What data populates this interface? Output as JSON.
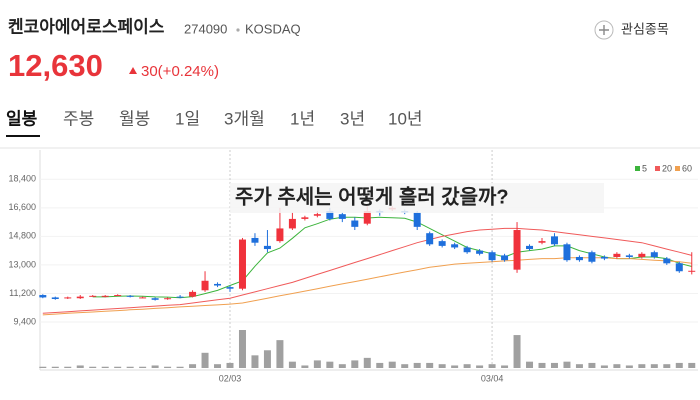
{
  "header": {
    "title": "켄코아에어로스페이스",
    "code": "274090",
    "market": "KOSDAQ",
    "watch_button": "관심종목",
    "price": "12,630",
    "change": "30(+0.24%)"
  },
  "tabs": [
    "일봉",
    "주봉",
    "월봉",
    "1일",
    "3개월",
    "1년",
    "3년",
    "10년"
  ],
  "chart_data": {
    "type": "candlestick",
    "annotation": "주가 추세는 어떻게 흘러 갔을까?",
    "categories": [
      null,
      null,
      null,
      null,
      null,
      null,
      null,
      null,
      null,
      null,
      null,
      null,
      null,
      null,
      null,
      "02/03",
      null,
      null,
      null,
      null,
      null,
      null,
      null,
      null,
      null,
      null,
      null,
      null,
      null,
      null,
      null,
      null,
      null,
      null,
      null,
      null,
      "03/04",
      null,
      null,
      null,
      null,
      null,
      null,
      null,
      null,
      null,
      null,
      null,
      null,
      null,
      null,
      null,
      null
    ],
    "open": [
      11100,
      10950,
      10900,
      10900,
      11050,
      11000,
      11100,
      11050,
      10950,
      10900,
      10850,
      11000,
      11000,
      11400,
      11800,
      11600,
      11500,
      14700,
      14200,
      14500,
      15300,
      15900,
      16100,
      16400,
      16200,
      15800,
      15600,
      16400,
      16500,
      16400,
      16300,
      15000,
      14500,
      14300,
      14100,
      13900,
      13800,
      13600,
      12700,
      14200,
      14400,
      14800,
      14300,
      13500,
      13800,
      13500,
      13500,
      13600,
      13500,
      13800,
      13400,
      13100,
      12600
    ],
    "high": [
      11150,
      11000,
      11000,
      11100,
      11100,
      11100,
      11150,
      11100,
      11000,
      10950,
      10950,
      11100,
      11400,
      12600,
      11900,
      11700,
      14700,
      15000,
      15200,
      16600,
      16300,
      16100,
      16400,
      16600,
      16300,
      16000,
      16700,
      16500,
      16700,
      16500,
      16400,
      15100,
      14600,
      14400,
      14200,
      14000,
      13900,
      13700,
      15700,
      14300,
      14700,
      15000,
      14400,
      13600,
      13900,
      13600,
      13800,
      13700,
      13800,
      13900,
      13500,
      13200,
      13800
    ],
    "low": [
      10900,
      10800,
      10850,
      10850,
      11000,
      10950,
      11050,
      10950,
      10900,
      10750,
      10800,
      10900,
      10950,
      11300,
      11600,
      11300,
      11400,
      14200,
      13800,
      14400,
      15200,
      15800,
      16000,
      15800,
      15700,
      15200,
      15500,
      16100,
      16400,
      16200,
      15200,
      14200,
      14100,
      14000,
      13700,
      13600,
      13200,
      13200,
      12500,
      13900,
      14300,
      14200,
      13200,
      13200,
      13100,
      13300,
      13400,
      13400,
      13400,
      13400,
      13000,
      12500,
      12400
    ],
    "close": [
      10950,
      10850,
      10950,
      11000,
      11050,
      11050,
      11100,
      11000,
      10950,
      10800,
      10900,
      10950,
      11300,
      12000,
      11700,
      11500,
      14600,
      14400,
      14000,
      15300,
      15900,
      16000,
      16200,
      15900,
      15900,
      15400,
      16400,
      16300,
      16600,
      16300,
      15400,
      14300,
      14200,
      14100,
      13800,
      13700,
      13300,
      13300,
      15200,
      14000,
      14500,
      14300,
      13300,
      13300,
      13200,
      13400,
      13700,
      13500,
      13700,
      13500,
      13100,
      12600,
      12630
    ],
    "volume": [
      1,
      1,
      1,
      2,
      1,
      1,
      1,
      1,
      1,
      2,
      1,
      1,
      3,
      12,
      3,
      4,
      30,
      10,
      14,
      22,
      5,
      2,
      6,
      5,
      3,
      6,
      8,
      4,
      5,
      3,
      4,
      4,
      3,
      2,
      3,
      2,
      3,
      2,
      26,
      5,
      4,
      4,
      5,
      3,
      4,
      2,
      3,
      2,
      3,
      3,
      3,
      4,
      4
    ],
    "up_color": "#f0323c",
    "down_color": "#1e6fdc",
    "volume_color": "#a0a0a0",
    "series": [
      {
        "name": "5",
        "color": "#3cb43c",
        "values": [
          null,
          null,
          null,
          null,
          10980,
          10980,
          11020,
          11040,
          11030,
          10980,
          10970,
          10930,
          11000,
          11190,
          11390,
          11700,
          12000,
          12920,
          13760,
          14060,
          14680,
          15340,
          15600,
          15880,
          16000,
          16000,
          15960,
          16000,
          15980,
          15940,
          15700,
          15300,
          14900,
          14500,
          14100,
          13900,
          13700,
          13500,
          13800,
          13900,
          14000,
          14200,
          14200,
          13900,
          13700,
          13500,
          13400,
          13400,
          13500,
          13500,
          13400,
          13100,
          12900
        ]
      },
      {
        "name": "20",
        "color": "#f05a5a",
        "values": [
          9950,
          10000,
          10050,
          10100,
          10150,
          10200,
          10250,
          10300,
          10350,
          10400,
          10450,
          10500,
          10600,
          10700,
          10800,
          10900,
          11100,
          11300,
          11500,
          11700,
          11900,
          12150,
          12400,
          12650,
          12900,
          13150,
          13400,
          13650,
          13900,
          14150,
          14400,
          14600,
          14800,
          14950,
          15100,
          15200,
          15250,
          15300,
          15300,
          15250,
          15200,
          15100,
          15000,
          14900,
          14800,
          14700,
          14600,
          14500,
          14400,
          14200,
          14000,
          13800,
          13600
        ]
      },
      {
        "name": "60",
        "color": "#f0a050",
        "values": [
          9850,
          9900,
          9950,
          9990,
          10030,
          10080,
          10120,
          10170,
          10210,
          10260,
          10300,
          10350,
          10390,
          10440,
          10480,
          10530,
          10600,
          10750,
          10900,
          11050,
          11200,
          11350,
          11500,
          11650,
          11800,
          11950,
          12100,
          12250,
          12400,
          12550,
          12700,
          12850,
          12950,
          13050,
          13100,
          13150,
          13200,
          13250,
          13300,
          13350,
          13400,
          13400,
          13450,
          13450,
          13450,
          13450,
          13400,
          13400,
          13350,
          13300,
          13250,
          13200,
          13100
        ]
      }
    ],
    "ylim": [
      9400,
      19300
    ],
    "yticks": [
      {
        "value": 9400,
        "label": "9,400"
      },
      {
        "value": 11200,
        "label": "11,200"
      },
      {
        "value": 13000,
        "label": "13,000"
      },
      {
        "value": 14800,
        "label": "14,800"
      },
      {
        "value": 16600,
        "label": "16,600"
      },
      {
        "value": 18400,
        "label": "18,400"
      }
    ]
  }
}
